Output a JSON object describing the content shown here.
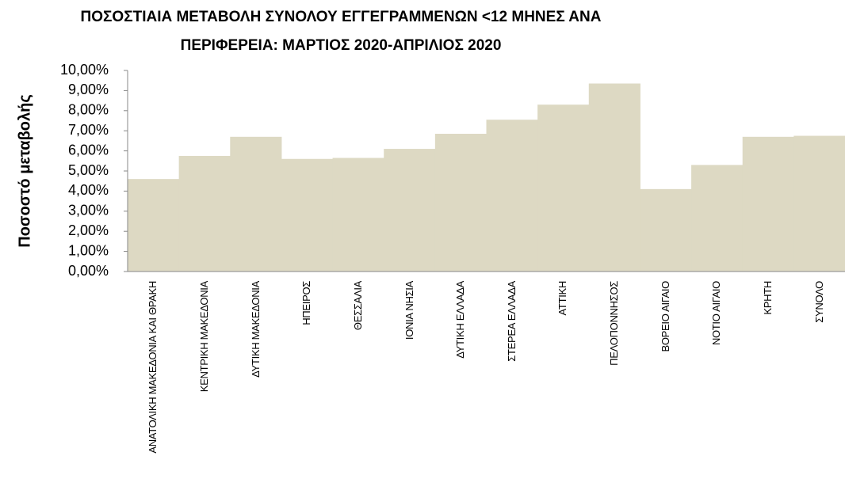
{
  "chart_data": {
    "type": "bar",
    "title": [
      "ΠΟΣΟΣΤΙΑΙΑ ΜΕΤΑΒΟΛΗ  ΣΥΝΟΛΟΥ ΕΓΓΕΓΡΑΜΜΕΝΩΝ <12 ΜΗΝΕΣ ΑΝΑ",
      "ΠΕΡΙΦΕΡΕΙΑ: ΜΑΡΤΙΟΣ 2020-ΑΠΡΙΛΙΟΣ 2020"
    ],
    "y_axis_label": "Ποσοστό μεταβολής",
    "categories": [
      "ΑΝΑΤΟΛΙΚΗ ΜΑΚΕΔΟΝΙΑ ΚΑΙ ΘΡΑΚΗ",
      "ΚΕΝΤΡΙΚΗ ΜΑΚΕΔΟΝΙΑ",
      "ΔΥΤΙΚΗ ΜΑΚΕΔΟΝΙΑ",
      "ΗΠΕΙΡΟΣ",
      "ΘΕΣΣΑΛΙΑ",
      "ΙΟΝΙΑ ΝΗΣΙΑ",
      "ΔΥΤΙΚΗ ΕΛΛΑΔΑ",
      "ΣΤΕΡΕΑ ΕΛΛΑΔΑ",
      "ΑΤΤΙΚΗ",
      "ΠΕΛΟΠΟΝΝΗΣΟΣ",
      "ΒΟΡΕΙΟ ΑΙΓΑΙΟ",
      "ΝΟΤΙΟ ΑΙΓΑΙΟ",
      "ΚΡΗΤΗ",
      "ΣΥΝΟΛΟ"
    ],
    "values": [
      4.6,
      5.75,
      6.7,
      5.6,
      5.65,
      6.1,
      6.85,
      7.55,
      8.3,
      9.35,
      4.1,
      5.3,
      6.7,
      6.75
    ],
    "color": "#ddd9c3",
    "ylim": [
      0,
      10
    ],
    "yticks": [
      {
        "value": 0,
        "label": "0,00%"
      },
      {
        "value": 1,
        "label": "1,00%"
      },
      {
        "value": 2,
        "label": "2,00%"
      },
      {
        "value": 3,
        "label": "3,00%"
      },
      {
        "value": 4,
        "label": "4,00%"
      },
      {
        "value": 5,
        "label": "5,00%"
      },
      {
        "value": 6,
        "label": "6,00%"
      },
      {
        "value": 7,
        "label": "7,00%"
      },
      {
        "value": 8,
        "label": "8,00%"
      },
      {
        "value": 9,
        "label": "9,00%"
      },
      {
        "value": 10,
        "label": "10,00%"
      }
    ],
    "grid": false
  }
}
